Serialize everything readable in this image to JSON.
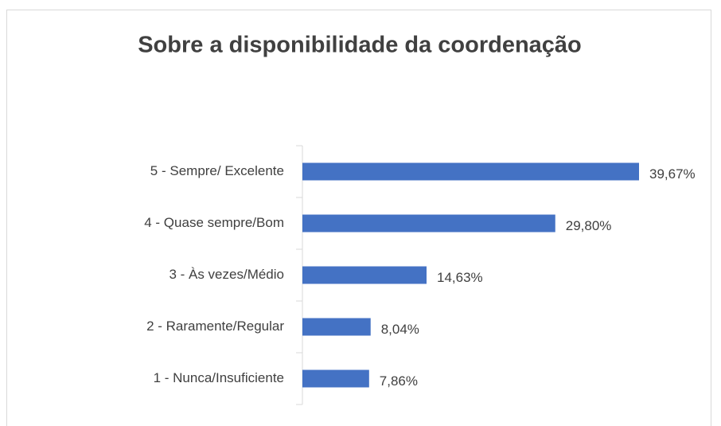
{
  "chart_data": {
    "type": "barh",
    "title": "Sobre a disponibilidade da coordenação",
    "categories": [
      "5 - Sempre/ Excelente",
      "4 - Quase sempre/Bom",
      "3 - Às vezes/Médio",
      "2 - Raramente/Regular",
      "1 - Nunca/Insuficiente"
    ],
    "values": [
      39.67,
      29.8,
      14.63,
      8.04,
      7.86
    ],
    "value_labels": [
      "39,67%",
      "29,80%",
      "14,63%",
      "8,04%",
      "7,86%"
    ],
    "color": "#4472c4"
  }
}
